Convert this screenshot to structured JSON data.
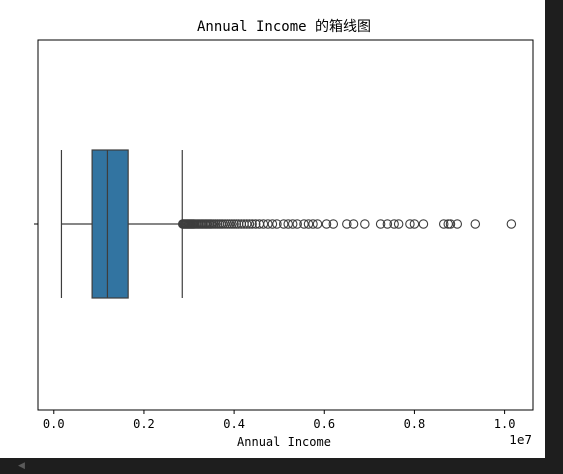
{
  "chart_data": {
    "type": "box",
    "title": "Annual Income 的箱线图",
    "xlabel": "Annual Income",
    "ylabel": "",
    "offset_label": "1e7",
    "xlim": [
      -0.035,
      1.063
    ],
    "xticks": [
      0.0,
      0.2,
      0.4,
      0.6,
      0.8,
      1.0
    ],
    "xtick_labels": [
      "0.0",
      "0.2",
      "0.4",
      "0.6",
      "0.8",
      "1.0"
    ],
    "orientation": "horizontal",
    "box_color": "#3274a1",
    "line_color": "#3d3d3d",
    "grid": false,
    "box": {
      "whisker_low": 0.017,
      "q1": 0.085,
      "median": 0.119,
      "q3": 0.165,
      "whisker_high": 0.285
    },
    "outliers": [
      0.286,
      0.288,
      0.29,
      0.292,
      0.294,
      0.296,
      0.298,
      0.3,
      0.302,
      0.304,
      0.306,
      0.308,
      0.31,
      0.312,
      0.315,
      0.318,
      0.321,
      0.324,
      0.327,
      0.33,
      0.333,
      0.336,
      0.339,
      0.342,
      0.345,
      0.348,
      0.351,
      0.355,
      0.359,
      0.363,
      0.367,
      0.371,
      0.375,
      0.38,
      0.385,
      0.39,
      0.395,
      0.4,
      0.405,
      0.41,
      0.416,
      0.422,
      0.428,
      0.434,
      0.44,
      0.448,
      0.456,
      0.465,
      0.475,
      0.485,
      0.495,
      0.51,
      0.52,
      0.53,
      0.54,
      0.555,
      0.565,
      0.575,
      0.585,
      0.605,
      0.62,
      0.65,
      0.665,
      0.69,
      0.725,
      0.74,
      0.755,
      0.765,
      0.79,
      0.8,
      0.82,
      0.865,
      0.875,
      0.88,
      0.895,
      0.935,
      1.015
    ]
  }
}
